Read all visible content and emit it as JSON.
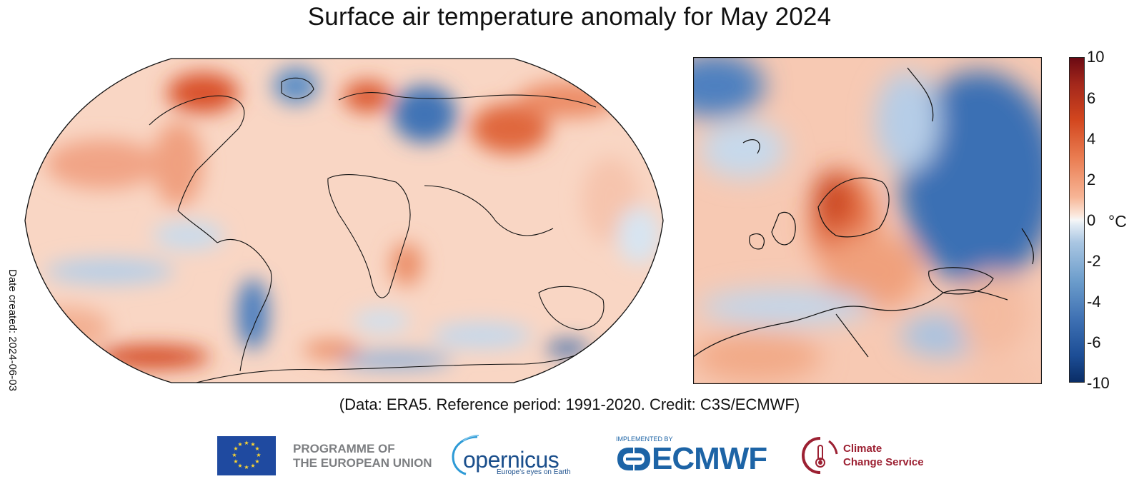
{
  "title": "Surface air temperature anomaly for May 2024",
  "subtitle": "(Data: ERA5.  Reference period: 1991-2020.  Credit: C3S/ECMWF)",
  "date_created": "Date created: 2024-06-03",
  "colorbar": {
    "unit": "°C",
    "ticks": [
      "10",
      "6",
      "4",
      "2",
      "0",
      "-2",
      "-4",
      "-6",
      "-10"
    ],
    "colors": [
      "#6b0a13",
      "#d2461e",
      "#f7b596",
      "#f7f7f7",
      "#a9c6e2",
      "#3d6fb2",
      "#0a2d66"
    ]
  },
  "maps": [
    {
      "name": "world",
      "projection": "robinson"
    },
    {
      "name": "europe",
      "projection": "regional"
    }
  ],
  "logos": {
    "eu": {
      "line1": "PROGRAMME OF",
      "line2": "THE EUROPEAN UNION"
    },
    "copernicus": {
      "name": "opernicus",
      "tagline": "Europe's eyes on Earth"
    },
    "ecmwf": {
      "implemented_by": "IMPLEMENTED BY",
      "name": "ECMWF"
    },
    "c3s": {
      "line1": "Climate",
      "line2": "Change Service"
    }
  }
}
